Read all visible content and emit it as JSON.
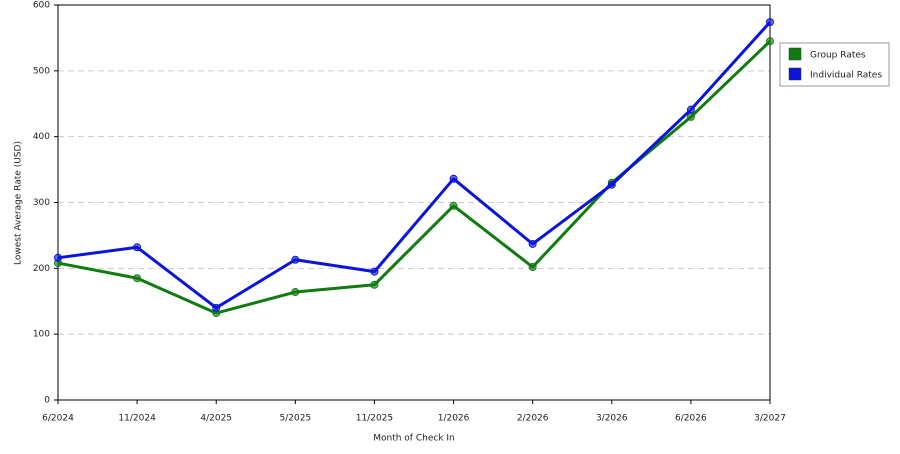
{
  "chart_data": {
    "type": "line",
    "x_label": "Month of Check In",
    "y_label": "Lowest Average Rate (USD)",
    "categories": [
      "6/2024",
      "11/2024",
      "4/2025",
      "5/2025",
      "11/2025",
      "1/2026",
      "2/2026",
      "3/2026",
      "6/2026",
      "3/2027"
    ],
    "series": [
      {
        "name": "Group Rates",
        "color": "#107c10",
        "values": [
          208,
          185,
          132,
          164,
          175,
          295,
          202,
          330,
          430,
          545
        ]
      },
      {
        "name": "Individual Rates",
        "color": "#0a14dc",
        "values": [
          216,
          232,
          140,
          213,
          195,
          336,
          237,
          327,
          441,
          574
        ]
      }
    ],
    "ylim": [
      0,
      600
    ],
    "yticks": [
      0,
      100,
      200,
      300,
      400,
      500,
      600
    ],
    "grid": true,
    "legend": "right"
  }
}
